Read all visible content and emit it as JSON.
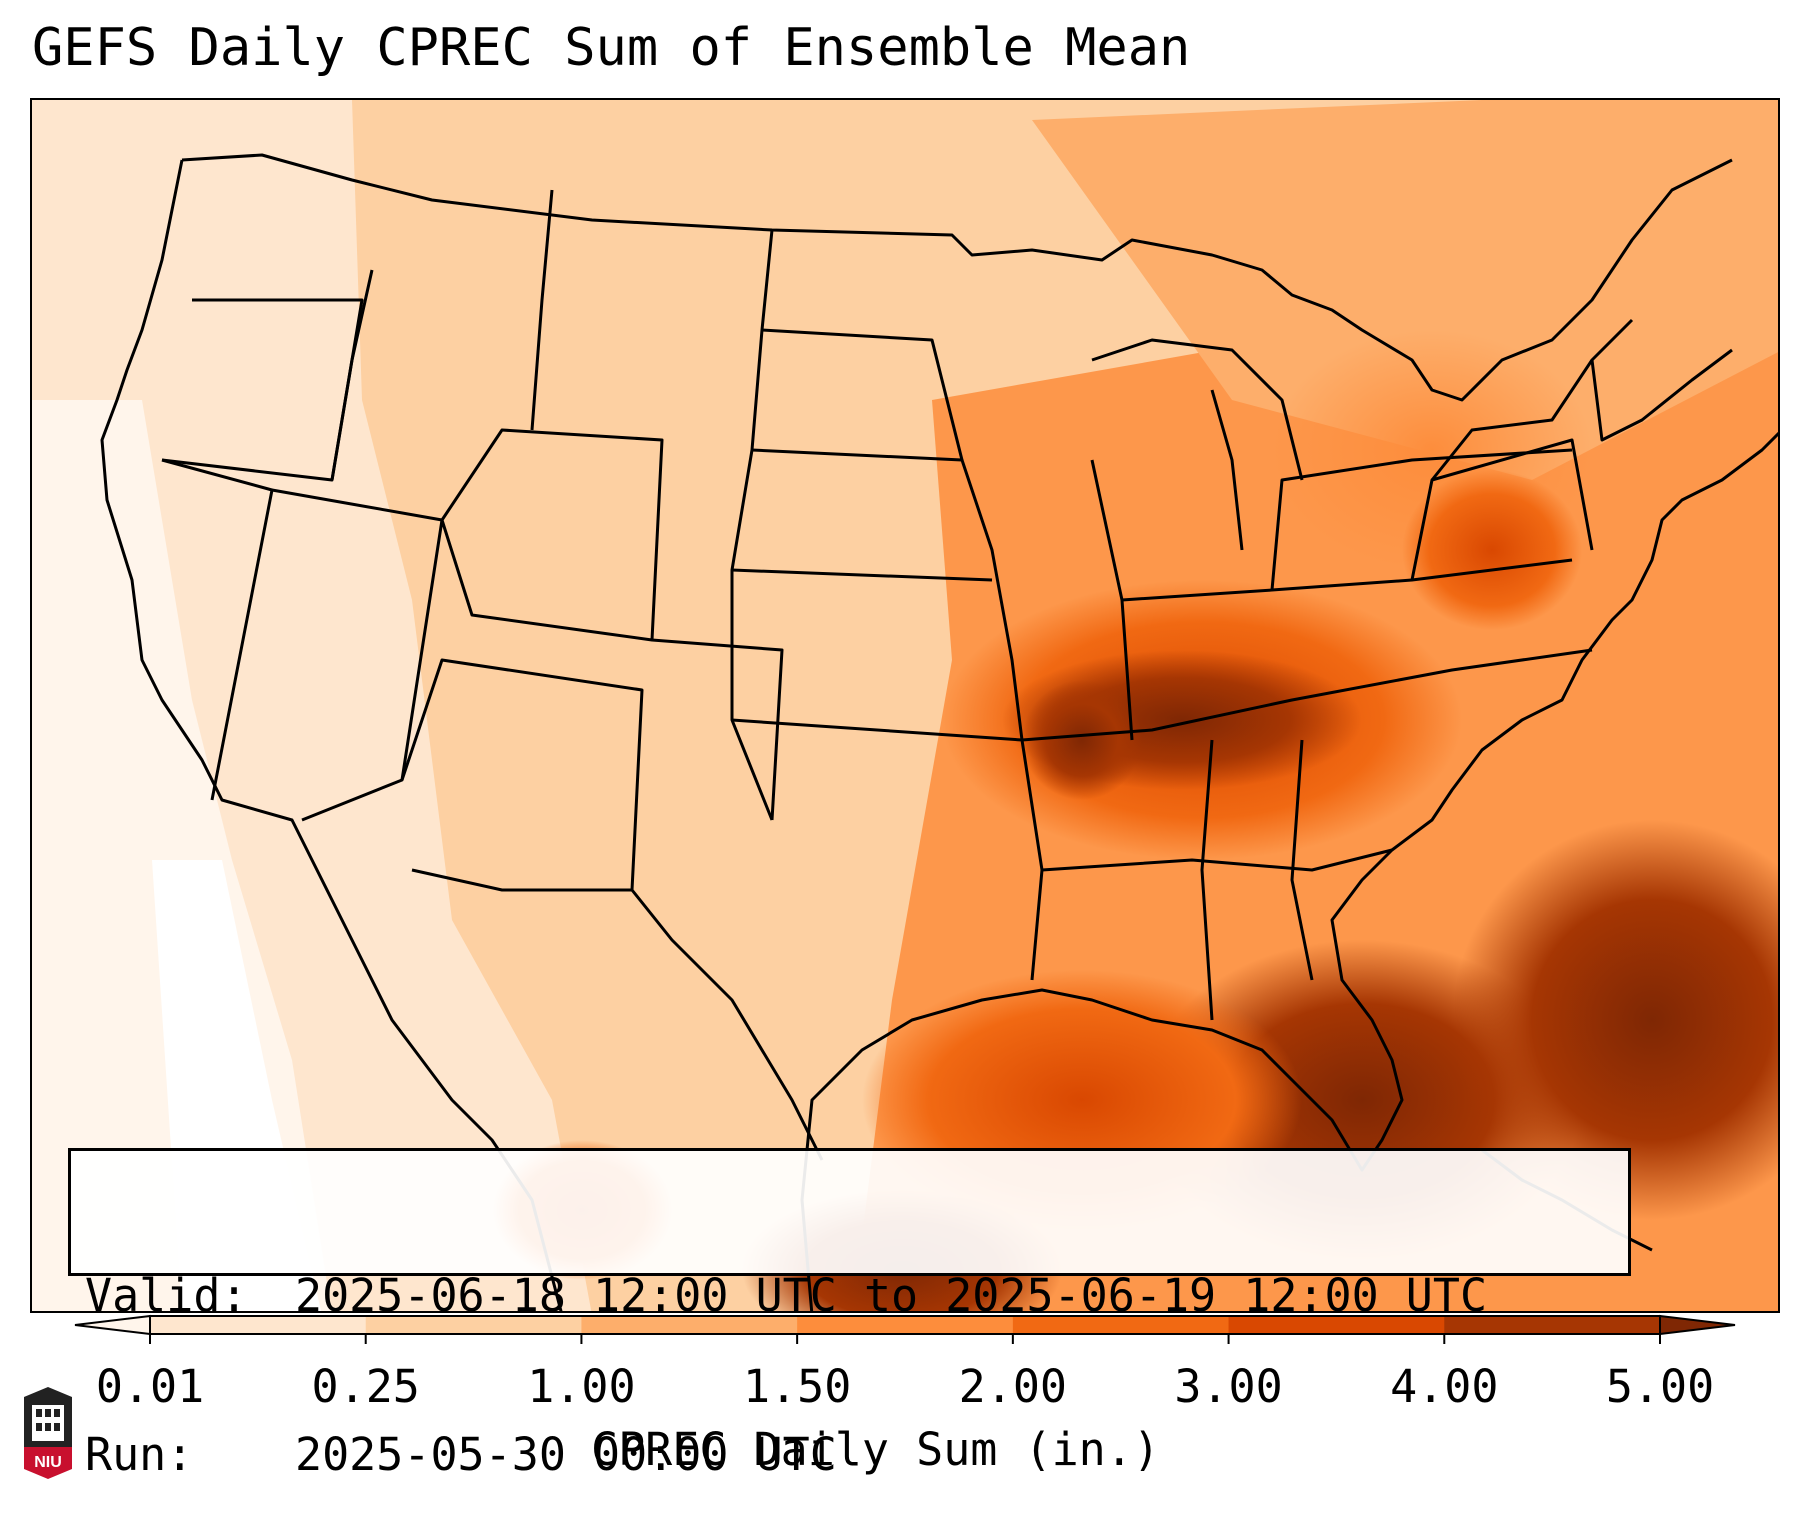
{
  "title": "GEFS Daily CPREC Sum of Ensemble Mean",
  "info": {
    "valid_key": "Valid:",
    "valid_value": "2025-06-18 12:00 UTC to 2025-06-19 12:00 UTC",
    "run_key": "Run:",
    "run_value": "2025-05-30 00:00 UTC"
  },
  "colorbar": {
    "label": "CPREC Daily Sum (in.)",
    "ticks": [
      "0.01",
      "0.25",
      "1.00",
      "1.50",
      "2.00",
      "3.00",
      "4.00",
      "5.00"
    ],
    "colors": [
      "#fff5eb",
      "#fee6ce",
      "#fdd0a2",
      "#fdae6b",
      "#fd8d3c",
      "#f16913",
      "#d94801",
      "#a63603",
      "#7f2704"
    ]
  },
  "logo": {
    "text": "NIU",
    "color": "#c8102e"
  }
}
